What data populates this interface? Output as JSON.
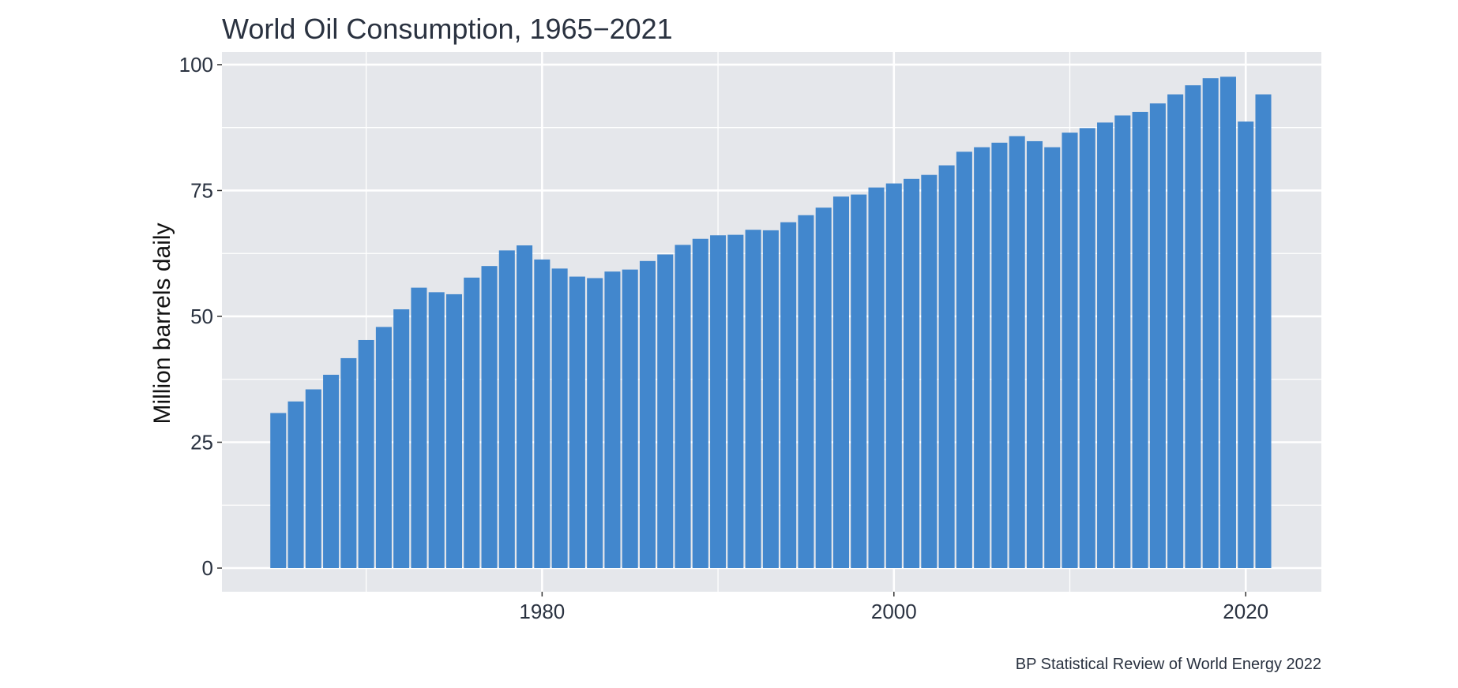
{
  "chart_data": {
    "type": "bar",
    "title": "World Oil Consumption, 1965−2021",
    "xlabel": "",
    "ylabel": "Million barrels daily",
    "caption": "BP Statistical Review of World Energy 2022",
    "xlim": [
      1961.8,
      2024.3
    ],
    "ylim": [
      -4.7,
      102.5
    ],
    "x_ticks": [
      1980,
      2000,
      2020
    ],
    "y_ticks": [
      0,
      25,
      50,
      75,
      100
    ],
    "grid": true,
    "legend": "none",
    "colors": {
      "bar": "#4287cd",
      "panel": "#e5e7eb",
      "grid": "#ffffff",
      "text": "#2a3240"
    },
    "x": [
      1965,
      1966,
      1967,
      1968,
      1969,
      1970,
      1971,
      1972,
      1973,
      1974,
      1975,
      1976,
      1977,
      1978,
      1979,
      1980,
      1981,
      1982,
      1983,
      1984,
      1985,
      1986,
      1987,
      1988,
      1989,
      1990,
      1991,
      1992,
      1993,
      1994,
      1995,
      1996,
      1997,
      1998,
      1999,
      2000,
      2001,
      2002,
      2003,
      2004,
      2005,
      2006,
      2007,
      2008,
      2009,
      2010,
      2011,
      2012,
      2013,
      2014,
      2015,
      2016,
      2017,
      2018,
      2019,
      2020,
      2021
    ],
    "values": [
      30.8,
      33.1,
      35.5,
      38.4,
      41.7,
      45.3,
      47.9,
      51.4,
      55.7,
      54.8,
      54.4,
      57.7,
      60.0,
      63.1,
      64.1,
      61.3,
      59.5,
      57.9,
      57.6,
      58.9,
      59.3,
      61.0,
      62.3,
      64.2,
      65.4,
      66.1,
      66.2,
      67.2,
      67.1,
      68.7,
      70.1,
      71.6,
      73.8,
      74.2,
      75.6,
      76.4,
      77.3,
      78.1,
      80.0,
      82.7,
      83.6,
      84.5,
      85.8,
      84.8,
      83.6,
      86.5,
      87.4,
      88.5,
      89.9,
      90.6,
      92.3,
      94.1,
      95.9,
      97.3,
      97.6,
      88.7,
      94.1
    ]
  }
}
